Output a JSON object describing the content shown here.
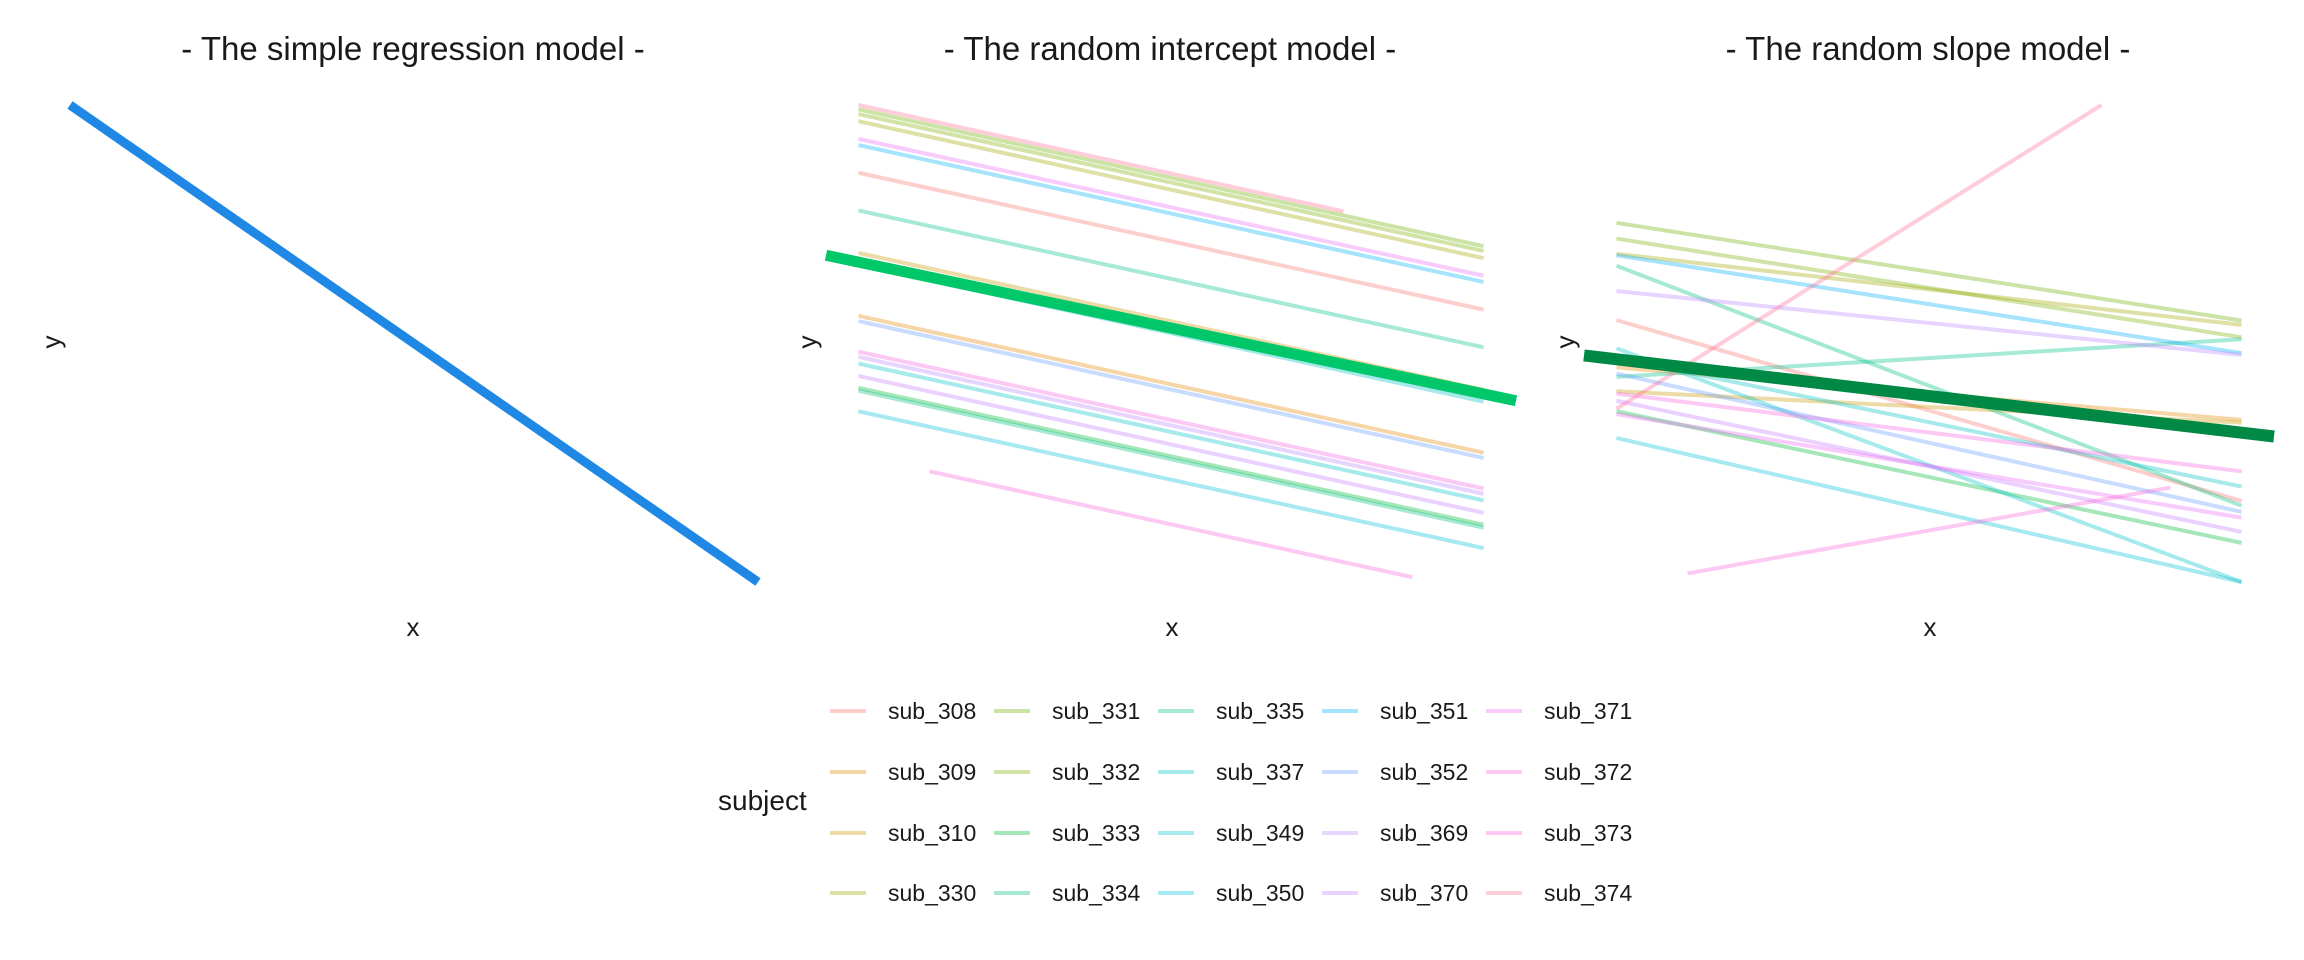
{
  "chart_data": [
    {
      "type": "line",
      "title": "- The simple regression model -",
      "xlabel": "x",
      "ylabel": "y",
      "xlim": [
        0,
        1
      ],
      "ylim": [
        0,
        1
      ],
      "fixed_line": {
        "x": [
          0,
          1
        ],
        "y": [
          1.0,
          0.0
        ],
        "color": "#1f88e5"
      },
      "series": []
    },
    {
      "type": "line",
      "title": "- The random intercept model -",
      "xlabel": "x",
      "ylabel": "y",
      "xlim": [
        0,
        1
      ],
      "ylim": [
        0,
        1
      ],
      "fixed_line": {
        "x": [
          0,
          1
        ],
        "y": [
          0.685,
          0.38
        ],
        "color": "#00c86a"
      },
      "series": [
        {
          "name": "sub_308",
          "x": [
            0.047,
            0.953
          ],
          "y": [
            0.858,
            0.571
          ]
        },
        {
          "name": "sub_309",
          "x": [
            0.047,
            0.953
          ],
          "y": [
            0.558,
            0.271
          ]
        },
        {
          "name": "sub_310",
          "x": [
            0.047,
            0.953
          ],
          "y": [
            0.69,
            0.403
          ]
        },
        {
          "name": "sub_330",
          "x": [
            0.047,
            0.953
          ],
          "y": [
            0.966,
            0.679
          ]
        },
        {
          "name": "sub_331",
          "x": [
            0.047,
            0.953
          ],
          "y": [
            0.991,
            0.704
          ]
        },
        {
          "name": "sub_332",
          "x": [
            0.047,
            0.953
          ],
          "y": [
            0.981,
            0.694
          ]
        },
        {
          "name": "sub_333",
          "x": [
            0.047,
            0.953
          ],
          "y": [
            0.407,
            0.12
          ]
        },
        {
          "name": "sub_334",
          "x": [
            0.047,
            0.953
          ],
          "y": [
            0.401,
            0.114
          ]
        },
        {
          "name": "sub_335",
          "x": [
            0.047,
            0.953
          ],
          "y": [
            0.779,
            0.492
          ]
        },
        {
          "name": "sub_337",
          "x": [
            0.047,
            0.953
          ],
          "y": [
            0.665,
            0.378
          ]
        },
        {
          "name": "sub_349",
          "x": [
            0.047,
            0.953
          ],
          "y": [
            0.458,
            0.171
          ]
        },
        {
          "name": "sub_350",
          "x": [
            0.047,
            0.953
          ],
          "y": [
            0.358,
            0.071
          ]
        },
        {
          "name": "sub_351",
          "x": [
            0.047,
            0.953
          ],
          "y": [
            0.916,
            0.629
          ]
        },
        {
          "name": "sub_352",
          "x": [
            0.047,
            0.953
          ],
          "y": [
            0.547,
            0.26
          ]
        },
        {
          "name": "sub_369",
          "x": [
            0.047,
            0.953
          ],
          "y": [
            0.472,
            0.185
          ]
        },
        {
          "name": "sub_370",
          "x": [
            0.047,
            0.953
          ],
          "y": [
            0.432,
            0.145
          ]
        },
        {
          "name": "sub_371",
          "x": [
            0.047,
            0.953
          ],
          "y": [
            0.929,
            0.642
          ]
        },
        {
          "name": "sub_372",
          "x": [
            0.047,
            0.953
          ],
          "y": [
            0.483,
            0.196
          ]
        },
        {
          "name": "sub_373",
          "x": [
            0.15,
            0.85
          ],
          "y": [
            0.232,
            0.01
          ]
        },
        {
          "name": "sub_374",
          "x": [
            0.047,
            0.75
          ],
          "y": [
            1.0,
            0.777
          ]
        }
      ]
    },
    {
      "type": "line",
      "title": "- The random slope model -",
      "xlabel": "x",
      "ylabel": "y",
      "xlim": [
        0,
        1
      ],
      "ylim": [
        0,
        1
      ],
      "fixed_line": {
        "x": [
          0,
          1
        ],
        "y": [
          0.475,
          0.305
        ],
        "color": "#008845"
      },
      "series": [
        {
          "name": "sub_308",
          "x": [
            0.047,
            0.953
          ],
          "y": [
            0.549,
            0.17
          ]
        },
        {
          "name": "sub_309",
          "x": [
            0.047,
            0.953
          ],
          "y": [
            0.45,
            0.34
          ]
        },
        {
          "name": "sub_310",
          "x": [
            0.047,
            0.953
          ],
          "y": [
            0.4,
            0.334
          ]
        },
        {
          "name": "sub_330",
          "x": [
            0.047,
            0.953
          ],
          "y": [
            0.688,
            0.539
          ]
        },
        {
          "name": "sub_331",
          "x": [
            0.047,
            0.953
          ],
          "y": [
            0.753,
            0.548
          ]
        },
        {
          "name": "sub_332",
          "x": [
            0.047,
            0.953
          ],
          "y": [
            0.72,
            0.513
          ]
        },
        {
          "name": "sub_333",
          "x": [
            0.047,
            0.953
          ],
          "y": [
            0.358,
            0.082
          ]
        },
        {
          "name": "sub_334",
          "x": [
            0.047,
            0.953
          ],
          "y": [
            0.663,
            0.16
          ]
        },
        {
          "name": "sub_335",
          "x": [
            0.047,
            0.953
          ],
          "y": [
            0.43,
            0.509
          ]
        },
        {
          "name": "sub_337",
          "x": [
            0.047,
            0.953
          ],
          "y": [
            0.47,
            0.2
          ]
        },
        {
          "name": "sub_349",
          "x": [
            0.047,
            0.953
          ],
          "y": [
            0.49,
            0.0
          ]
        },
        {
          "name": "sub_350",
          "x": [
            0.047,
            0.953
          ],
          "y": [
            0.302,
            0.0
          ]
        },
        {
          "name": "sub_351",
          "x": [
            0.047,
            0.953
          ],
          "y": [
            0.685,
            0.48
          ]
        },
        {
          "name": "sub_352",
          "x": [
            0.047,
            0.953
          ],
          "y": [
            0.437,
            0.147
          ]
        },
        {
          "name": "sub_369",
          "x": [
            0.047,
            0.953
          ],
          "y": [
            0.61,
            0.476
          ]
        },
        {
          "name": "sub_370",
          "x": [
            0.047,
            0.953
          ],
          "y": [
            0.38,
            0.105
          ]
        },
        {
          "name": "sub_371",
          "x": [
            0.047,
            0.953
          ],
          "y": [
            0.352,
            0.135
          ]
        },
        {
          "name": "sub_372",
          "x": [
            0.047,
            0.953
          ],
          "y": [
            0.395,
            0.232
          ]
        },
        {
          "name": "sub_373",
          "x": [
            0.15,
            0.85
          ],
          "y": [
            0.018,
            0.198
          ]
        },
        {
          "name": "sub_374",
          "x": [
            0.047,
            0.75
          ],
          "y": [
            0.363,
            1.0
          ]
        }
      ]
    }
  ],
  "legend": {
    "title": "subject",
    "items": [
      {
        "name": "sub_308",
        "color": "#f8766d"
      },
      {
        "name": "sub_309",
        "color": "#e58700"
      },
      {
        "name": "sub_310",
        "color": "#c99800"
      },
      {
        "name": "sub_330",
        "color": "#a3a500"
      },
      {
        "name": "sub_331",
        "color": "#6bb100"
      },
      {
        "name": "sub_332",
        "color": "#7cae00"
      },
      {
        "name": "sub_333",
        "color": "#00ba38"
      },
      {
        "name": "sub_334",
        "color": "#00bf7d"
      },
      {
        "name": "sub_335",
        "color": "#00c08b"
      },
      {
        "name": "sub_337",
        "color": "#00bfc4"
      },
      {
        "name": "sub_349",
        "color": "#00c2c8"
      },
      {
        "name": "sub_350",
        "color": "#00c0d8"
      },
      {
        "name": "sub_351",
        "color": "#00b0f6"
      },
      {
        "name": "sub_352",
        "color": "#619cff"
      },
      {
        "name": "sub_369",
        "color": "#b983ff"
      },
      {
        "name": "sub_370",
        "color": "#c77cff"
      },
      {
        "name": "sub_371",
        "color": "#e76bf3"
      },
      {
        "name": "sub_372",
        "color": "#f564e3"
      },
      {
        "name": "sub_373",
        "color": "#fa62db"
      },
      {
        "name": "sub_374",
        "color": "#ff6c91"
      }
    ]
  }
}
